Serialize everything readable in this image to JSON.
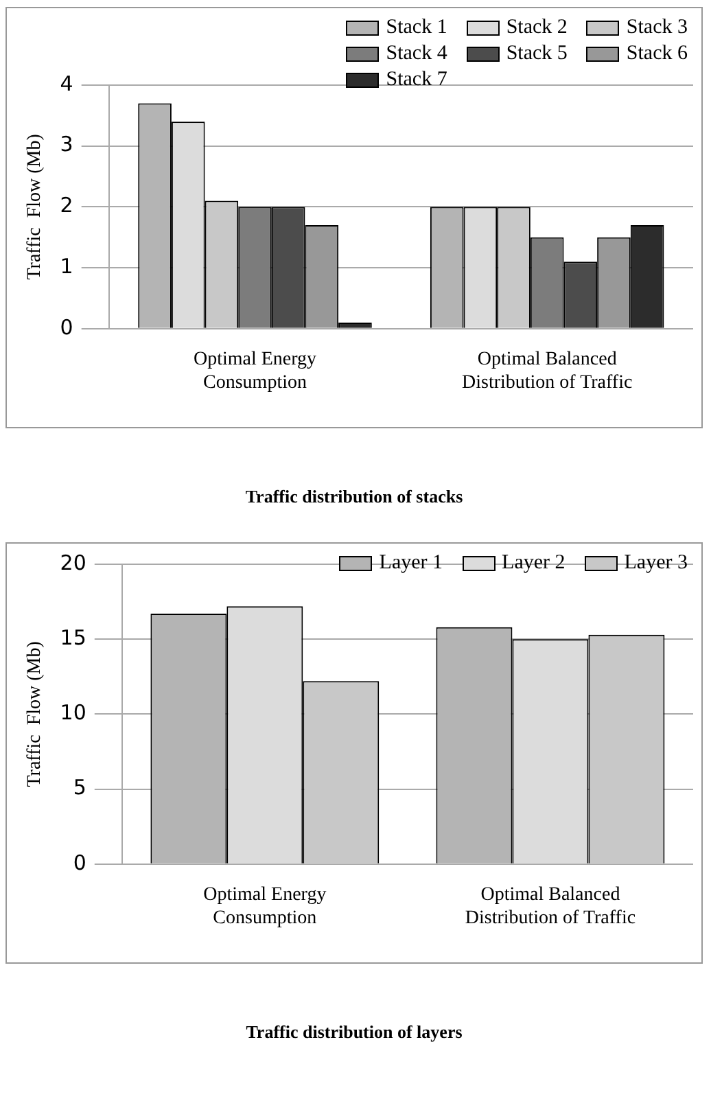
{
  "chart_data": [
    {
      "type": "bar",
      "title": "Traffic distribution of stacks",
      "ylabel": "Traffic  Flow (Mb)",
      "categories": [
        "Optimal Energy Consumption",
        "Optimal Balanced Distribution of Traffic"
      ],
      "series": [
        {
          "name": "Stack 1",
          "color": "#b4b4b4",
          "values": [
            3.7,
            2.0
          ]
        },
        {
          "name": "Stack 2",
          "color": "#dcdcdc",
          "values": [
            3.4,
            2.0
          ]
        },
        {
          "name": "Stack 3",
          "color": "#c8c8c8",
          "values": [
            2.1,
            2.0
          ]
        },
        {
          "name": "Stack 4",
          "color": "#7c7c7c",
          "values": [
            2.0,
            1.5
          ]
        },
        {
          "name": "Stack 5",
          "color": "#4c4c4c",
          "values": [
            2.0,
            1.1
          ]
        },
        {
          "name": "Stack 6",
          "color": "#989898",
          "values": [
            1.7,
            1.5
          ]
        },
        {
          "name": "Stack 7",
          "color": "#2c2c2c",
          "values": [
            0.1,
            1.7
          ]
        }
      ],
      "ylim": [
        0,
        4
      ],
      "yticks": [
        0,
        1,
        2,
        3,
        4
      ],
      "grid": "y",
      "legend": "top right"
    },
    {
      "type": "bar",
      "title": "Traffic distribution of layers",
      "ylabel": "Traffic  Flow (Mb)",
      "categories": [
        "Optimal Energy Consumption",
        "Optimal Balanced Distribution of Traffic"
      ],
      "series": [
        {
          "name": "Layer 1",
          "color": "#b4b4b4",
          "values": [
            16.7,
            15.8
          ]
        },
        {
          "name": "Layer 2",
          "color": "#dcdcdc",
          "values": [
            17.2,
            15.0
          ]
        },
        {
          "name": "Layer 3",
          "color": "#c8c8c8",
          "values": [
            12.2,
            15.3
          ]
        }
      ],
      "ylim": [
        0,
        20
      ],
      "yticks": [
        0,
        5,
        10,
        15,
        20
      ],
      "grid": "y",
      "legend": "top right"
    }
  ]
}
